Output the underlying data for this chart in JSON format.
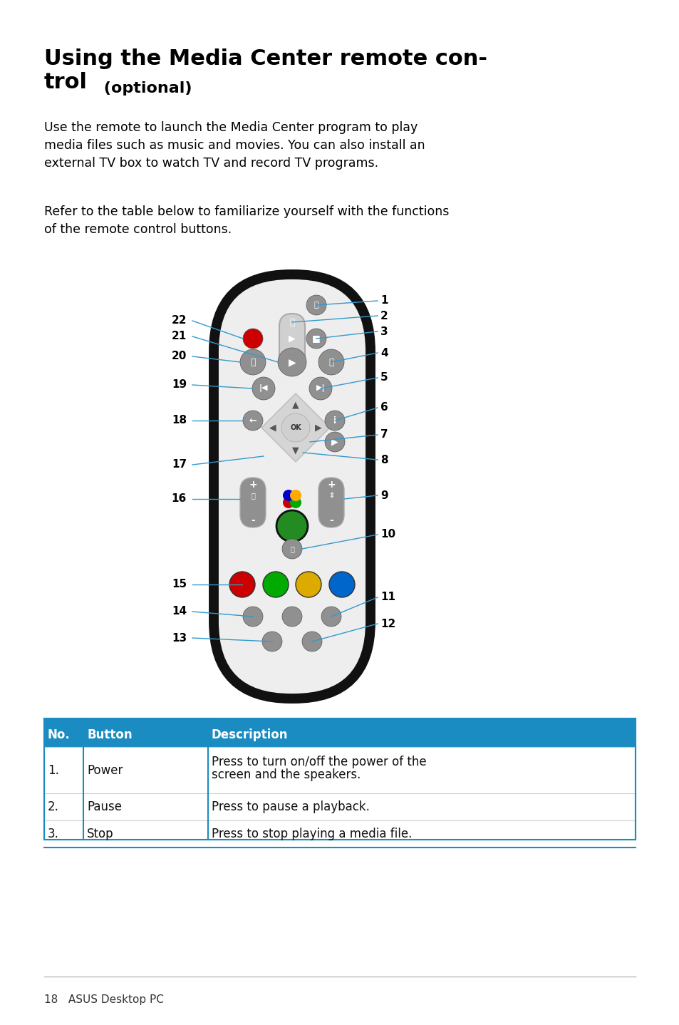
{
  "title_bold": "Using the Media Center remote con-trol",
  "title_optional": " (optional)",
  "para1": "Use the remote to launch the Media Center program to play\nmedia files such as music and movies. You can also install an\nexternal TV box to watch TV and record TV programs.",
  "para2": "Refer to the table below to familiarize yourself with the functions\nof the remote control buttons.",
  "table_header_bg": "#1a8cc2",
  "table_header_color": "#ffffff",
  "table_border_color": "#1a8cc2",
  "table_row_divider": "#cccccc",
  "table_headers": [
    "No.",
    "Button",
    "Description"
  ],
  "table_rows": [
    [
      "1.",
      "Power",
      "Press to turn on/off the power of the\nscreen and the speakers."
    ],
    [
      "2.",
      "Pause",
      "Press to pause a playback."
    ],
    [
      "3.",
      "Stop",
      "Press to stop playing a media file."
    ]
  ],
  "footer_text": "18   ASUS Desktop PC",
  "bg_color": "#ffffff",
  "text_color": "#000000"
}
